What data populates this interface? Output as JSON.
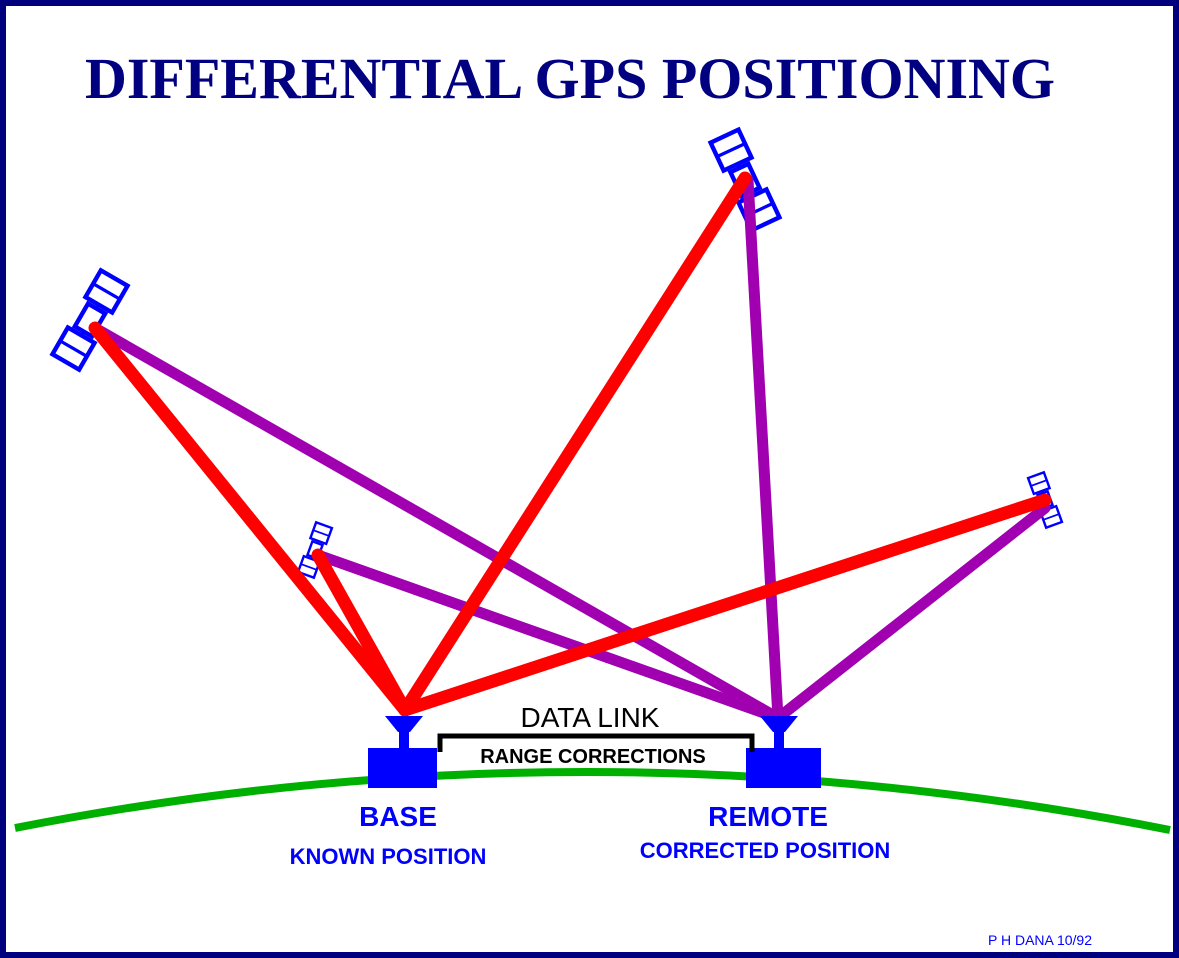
{
  "header": {
    "title": "DIFFERENTIAL GPS POSITIONING"
  },
  "data_link": {
    "label": "DATA LINK",
    "sublabel": "RANGE CORRECTIONS"
  },
  "stations": [
    {
      "name": "BASE",
      "description": "KNOWN POSITION"
    },
    {
      "name": "REMOTE",
      "description": "CORRECTED POSITION"
    }
  ],
  "credit": "P H DANA 10/92"
}
